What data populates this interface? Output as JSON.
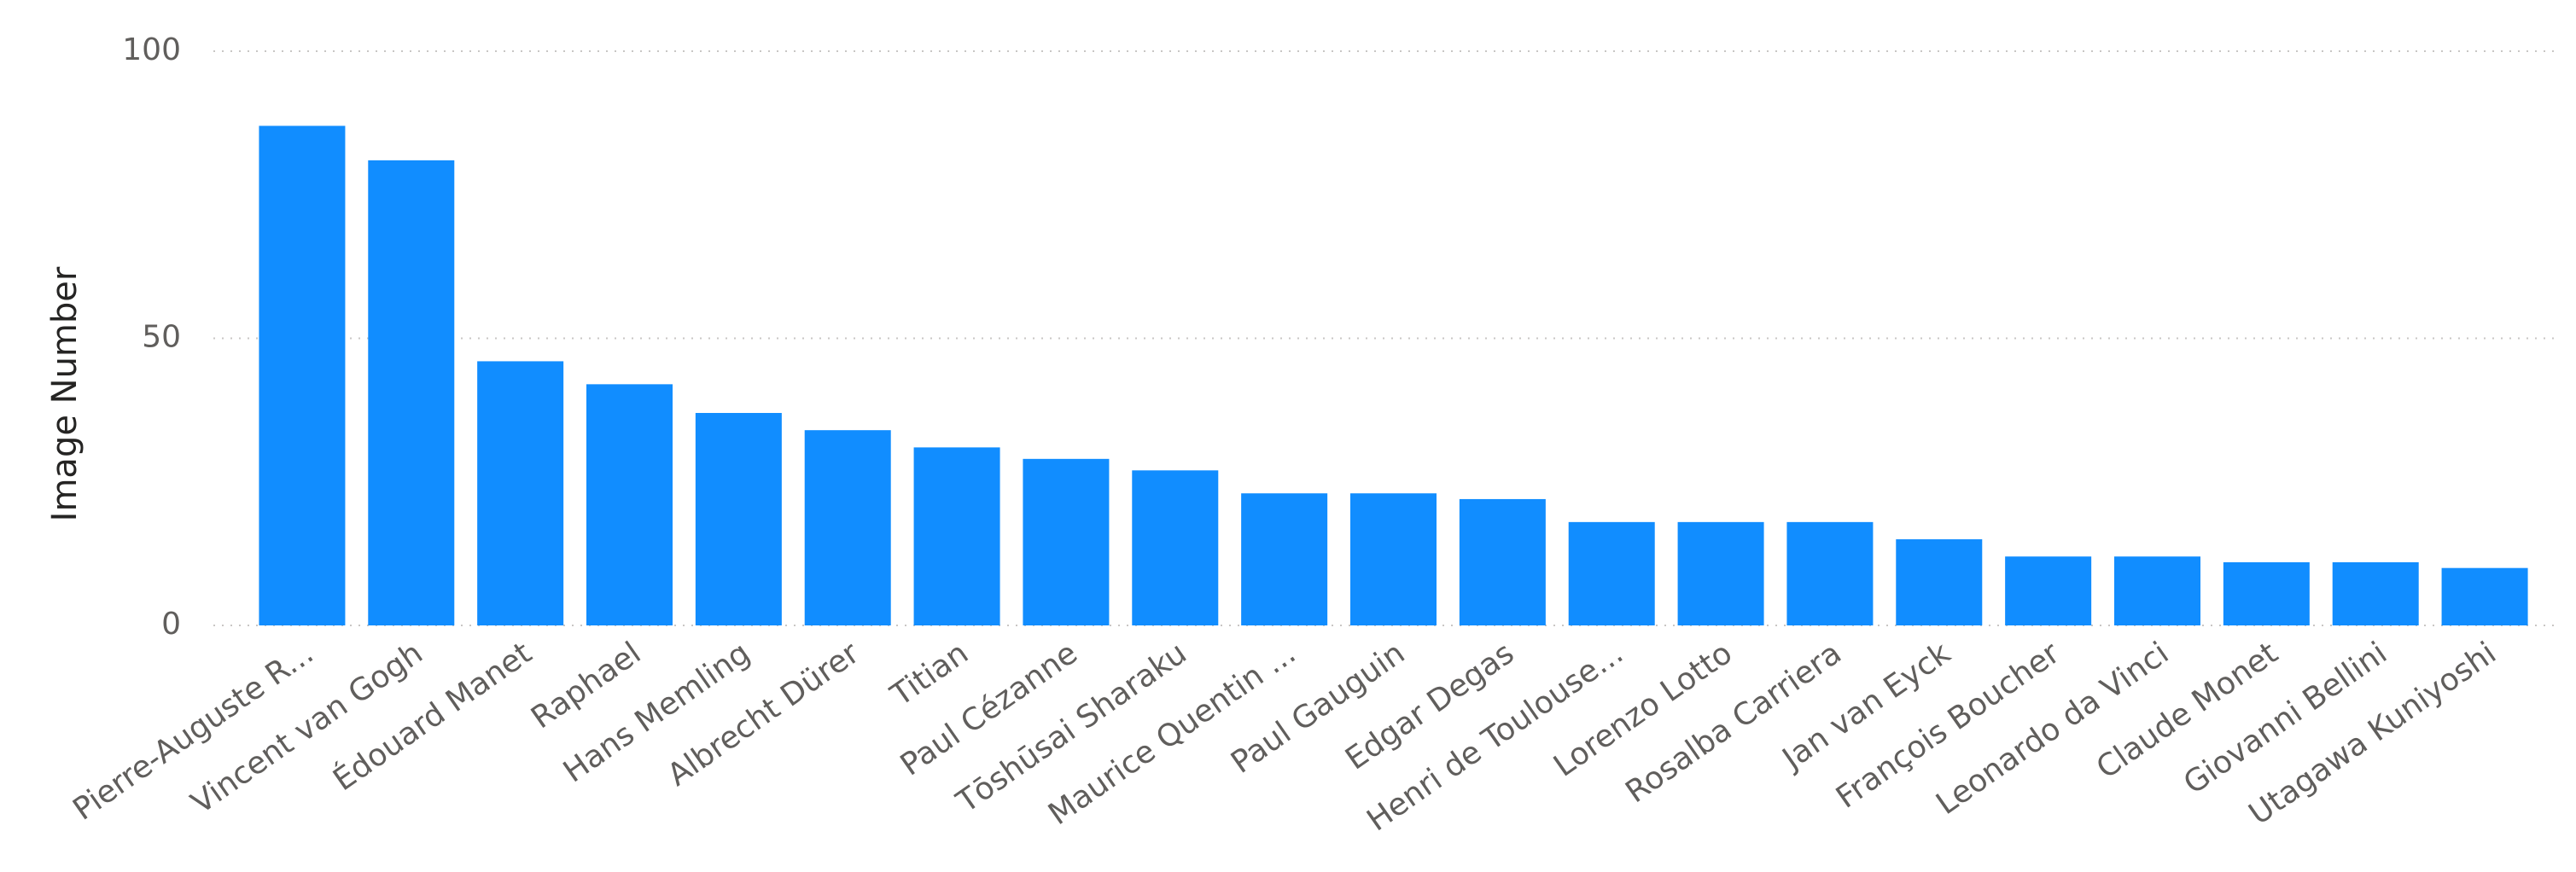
{
  "chart_data": {
    "type": "bar",
    "ylabel": "Image Number",
    "categories": [
      "Pierre-Auguste R...",
      "Vincent van Gogh",
      "Édouard Manet",
      "Raphael",
      "Hans Memling",
      "Albrecht Dürer",
      "Titian",
      "Paul Cézanne",
      "Tōshūsai Sharaku",
      "Maurice Quentin ...",
      "Paul Gauguin",
      "Edgar Degas",
      "Henri de Toulouse...",
      "Lorenzo Lotto",
      "Rosalba Carriera",
      "Jan van Eyck",
      "François Boucher",
      "Leonardo da Vinci",
      "Claude Monet",
      "Giovanni Bellini",
      "Utagawa Kuniyoshi"
    ],
    "values": [
      87,
      81,
      46,
      42,
      37,
      34,
      31,
      29,
      27,
      23,
      23,
      22,
      18,
      18,
      18,
      15,
      12,
      12,
      11,
      11,
      10
    ],
    "color": "#118dff",
    "ylim": [
      0,
      100
    ],
    "yticks": [
      0,
      50,
      100
    ],
    "grid": true
  }
}
